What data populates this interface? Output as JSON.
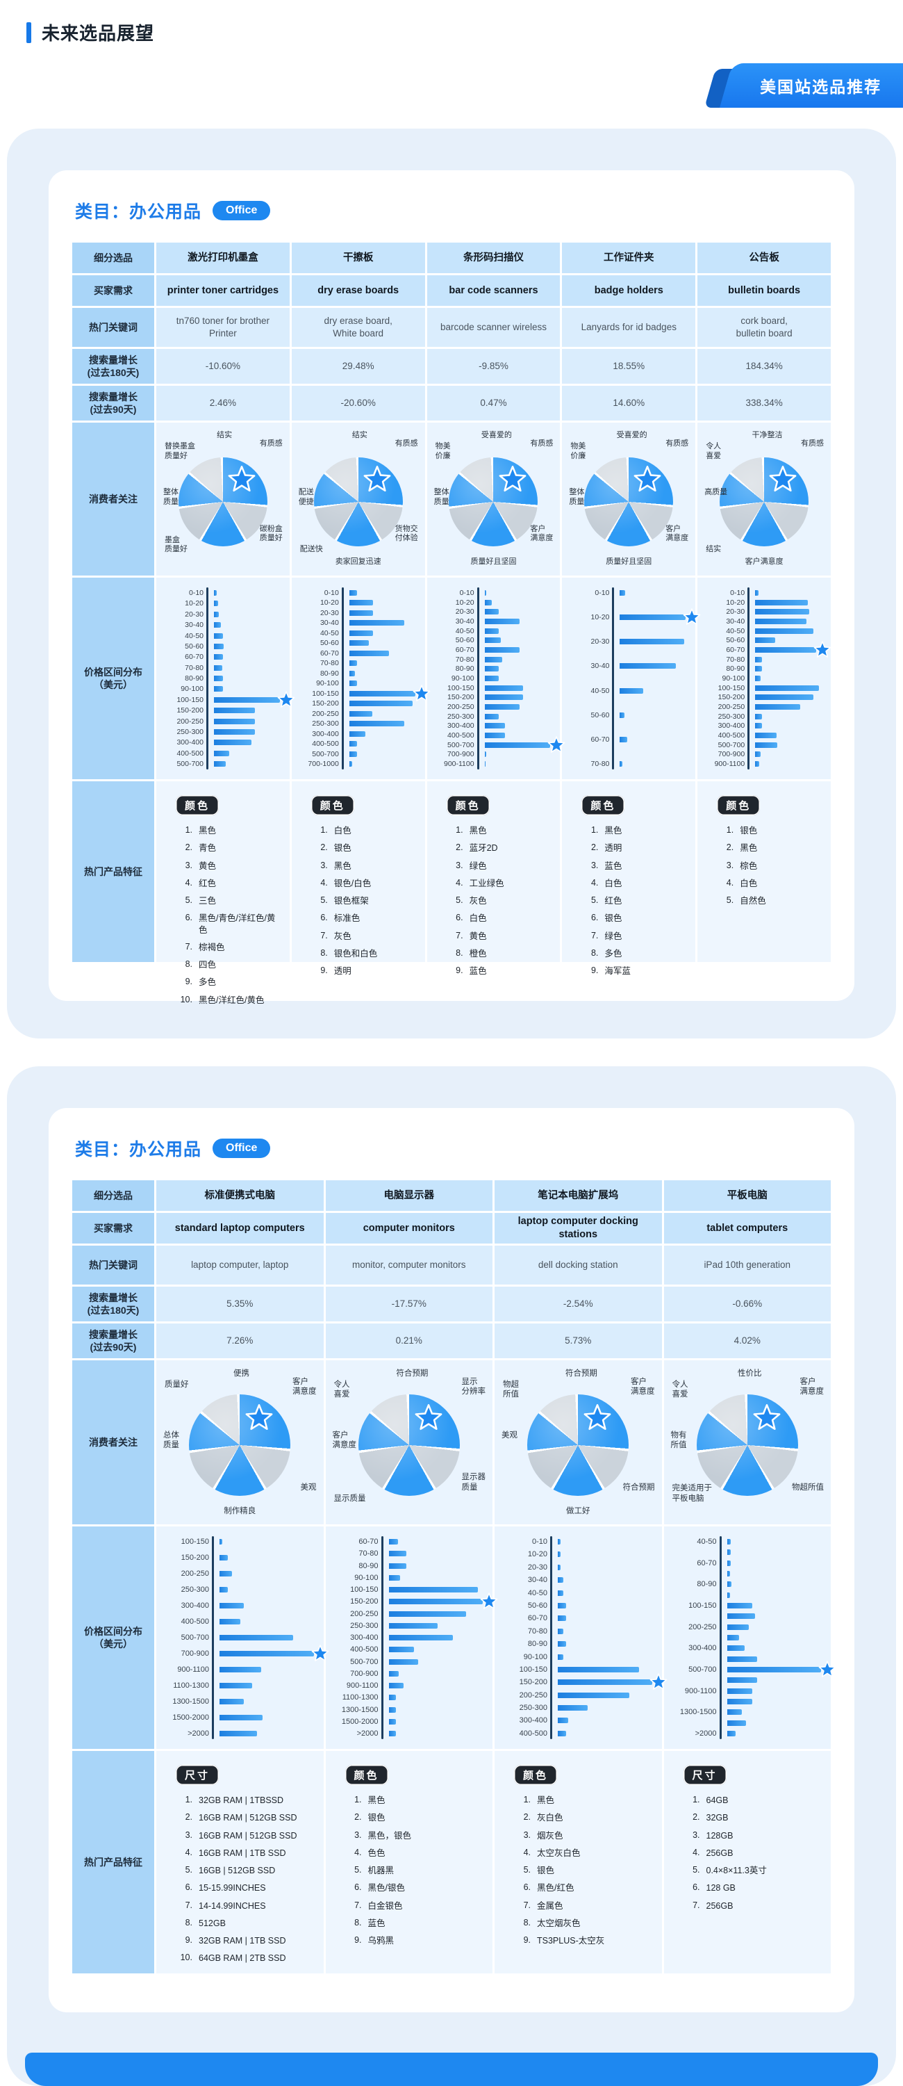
{
  "header": {
    "title": "未来选品展望",
    "ribbon": "美国站选品推荐"
  },
  "rows": {
    "seg": "细分选品",
    "demand": "买家需求",
    "keywords": "热门关键词",
    "g180": "搜索量增长\n(过去180天)",
    "g90": "搜索量增长\n(过去90天)",
    "focus": "消费者关注",
    "price": "价格区间分布\n（美元）",
    "features": "热门产品特征"
  },
  "colors": {
    "accent": "#1E88F0",
    "bar_blue": "#2E9BF5",
    "pie_gray": "#CBD3DB",
    "axis_navy": "#1C3D5E"
  },
  "section1": {
    "category": "类目：办公用品",
    "badge": "Office",
    "columns": [
      {
        "name": "激光打印机墨盒",
        "demand": "printer toner cartridges",
        "keywords": "tn760 toner for brother\nPrinter",
        "g180": "-10.60%",
        "g90": "2.46%",
        "pie": {
          "labels": [
            {
              "pos": "t",
              "text": "结实"
            },
            {
              "pos": "tr",
              "text": "有质感"
            },
            {
              "pos": "br",
              "text": "碳粉盒\n质量好"
            },
            {
              "pos": "bl",
              "text": "墨盒\n质量好"
            },
            {
              "pos": "l",
              "text": "整体\n质量"
            },
            {
              "pos": "tl",
              "text": "替换墨盒\n质量好"
            }
          ]
        },
        "bars": {
          "type": "bar",
          "categories": [
            "0-10",
            "10-20",
            "20-30",
            "30-40",
            "40-50",
            "50-60",
            "60-70",
            "70-80",
            "80-90",
            "90-100",
            "100-150",
            "150-200",
            "200-250",
            "250-300",
            "300-400",
            "400-500",
            "500-700"
          ],
          "values": [
            4,
            6,
            7,
            11,
            14,
            15,
            14,
            13,
            14,
            14,
            100,
            62,
            62,
            62,
            57,
            23,
            18
          ],
          "star_index": 10
        },
        "features": {
          "badge": "颜色",
          "items": [
            "黑色",
            "青色",
            "黄色",
            "红色",
            "三色",
            "黑色/青色/洋红色/黄色",
            "棕褐色",
            "四色",
            "多色",
            "黑色/洋红色/黄色"
          ]
        }
      },
      {
        "name": "干擦板",
        "demand": "dry erase boards",
        "keywords": "dry erase board,\nWhite board",
        "g180": "29.48%",
        "g90": "-20.60%",
        "pie": {
          "labels": [
            {
              "pos": "t",
              "text": "结实"
            },
            {
              "pos": "tr",
              "text": "有质感"
            },
            {
              "pos": "br",
              "text": "货物交\n付体验"
            },
            {
              "pos": "b",
              "text": "卖家回复迅速"
            },
            {
              "pos": "bl",
              "text": "配送快"
            },
            {
              "pos": "l",
              "text": "配送\n便捷"
            }
          ]
        },
        "bars": {
          "type": "bar",
          "categories": [
            "0-10",
            "10-20",
            "20-30",
            "30-40",
            "40-50",
            "50-60",
            "60-70",
            "70-80",
            "80-90",
            "90-100",
            "100-150",
            "150-200",
            "200-250",
            "250-300",
            "300-400",
            "400-500",
            "500-700",
            "700-1000"
          ],
          "values": [
            12,
            36,
            36,
            84,
            36,
            30,
            60,
            12,
            9,
            12,
            100,
            96,
            35,
            84,
            24,
            12,
            12,
            4
          ],
          "star_index": 10
        },
        "features": {
          "badge": "颜色",
          "items": [
            "白色",
            "银色",
            "黑色",
            "银色/白色",
            "银色框架",
            "标准色",
            "灰色",
            "银色和白色",
            "透明"
          ]
        }
      },
      {
        "name": "条形码扫描仪",
        "demand": "bar code scanners",
        "keywords": "barcode scanner wireless",
        "g180": "-9.85%",
        "g90": "0.47%",
        "pie": {
          "labels": [
            {
              "pos": "t",
              "text": "受喜爱的"
            },
            {
              "pos": "tr",
              "text": "有质感"
            },
            {
              "pos": "br",
              "text": "客户\n满意度"
            },
            {
              "pos": "b",
              "text": "质量好且坚固"
            },
            {
              "pos": "l",
              "text": "整体\n质量"
            },
            {
              "pos": "tl",
              "text": "物美\n价廉"
            }
          ]
        },
        "bars": {
          "type": "bar",
          "categories": [
            "0-10",
            "10-20",
            "20-30",
            "30-40",
            "40-50",
            "50-60",
            "60-70",
            "70-80",
            "80-90",
            "90-100",
            "100-150",
            "150-200",
            "200-250",
            "250-300",
            "300-400",
            "400-500",
            "500-700",
            "700-900",
            "900-1100"
          ],
          "values": [
            3,
            11,
            21,
            53,
            21,
            25,
            53,
            27,
            21,
            21,
            58,
            58,
            53,
            21,
            31,
            31,
            100,
            3,
            1
          ],
          "star_index": 16
        },
        "features": {
          "badge": "颜色",
          "items": [
            "黑色",
            "蓝牙2D",
            "绿色",
            "工业绿色",
            "灰色",
            "白色",
            "黄色",
            "橙色",
            "蓝色"
          ]
        }
      },
      {
        "name": "工作证件夹",
        "demand": "badge holders",
        "keywords": "Lanyards for id badges",
        "g180": "18.55%",
        "g90": "14.60%",
        "pie": {
          "labels": [
            {
              "pos": "t",
              "text": "受喜爱的"
            },
            {
              "pos": "tr",
              "text": "有质感"
            },
            {
              "pos": "br",
              "text": "客户\n满意度"
            },
            {
              "pos": "b",
              "text": "质量好且坚固"
            },
            {
              "pos": "l",
              "text": "整体\n质量"
            },
            {
              "pos": "tl",
              "text": "物美\n价廉"
            }
          ]
        },
        "bars": {
          "type": "bar",
          "categories": [
            "0-10",
            "10-20",
            "20-30",
            "30-40",
            "40-50",
            "50-60",
            "60-70",
            "70-80"
          ],
          "values": [
            8,
            100,
            98,
            85,
            35,
            7,
            11,
            4
          ],
          "star_index": 1
        },
        "features": {
          "badge": "颜色",
          "items": [
            "黑色",
            "透明",
            "蓝色",
            "白色",
            "红色",
            "银色",
            "绿色",
            "多色",
            "海军蓝"
          ]
        }
      },
      {
        "name": "公告板",
        "demand": "bulletin boards",
        "keywords": "cork board,\nbulletin board",
        "g180": "184.34%",
        "g90": "338.34%",
        "pie": {
          "labels": [
            {
              "pos": "t",
              "text": "干净整洁"
            },
            {
              "pos": "tr",
              "text": "有质感"
            },
            {
              "pos": "b",
              "text": "客户满意度"
            },
            {
              "pos": "bl",
              "text": "结实"
            },
            {
              "pos": "l",
              "text": "高质量"
            },
            {
              "pos": "tl",
              "text": "令人\n喜爱"
            }
          ]
        },
        "bars": {
          "type": "bar",
          "categories": [
            "0-10",
            "10-20",
            "20-30",
            "30-40",
            "40-50",
            "50-60",
            "60-70",
            "70-80",
            "80-90",
            "90-100",
            "100-150",
            "150-200",
            "200-250",
            "250-300",
            "300-400",
            "400-500",
            "500-700",
            "700-900",
            "900-1100"
          ],
          "values": [
            5,
            80,
            82,
            78,
            88,
            30,
            93,
            10,
            10,
            8,
            97,
            88,
            68,
            10,
            10,
            33,
            34,
            8,
            6
          ],
          "star_index": 6
        },
        "features": {
          "badge": "颜色",
          "items": [
            "银色",
            "黑色",
            "棕色",
            "白色",
            "自然色"
          ]
        }
      }
    ]
  },
  "section2": {
    "category": "类目：办公用品",
    "badge": "Office",
    "columns": [
      {
        "name": "标准便携式电脑",
        "demand": "standard laptop computers",
        "keywords": "laptop computer, laptop",
        "g180": "5.35%",
        "g90": "7.26%",
        "pie": {
          "labels": [
            {
              "pos": "t",
              "text": "便携"
            },
            {
              "pos": "tr",
              "text": "客户\n满意度"
            },
            {
              "pos": "br",
              "text": "美观"
            },
            {
              "pos": "b",
              "text": "制作精良"
            },
            {
              "pos": "l",
              "text": "总体\n质量"
            },
            {
              "pos": "tl",
              "text": "质量好"
            }
          ]
        },
        "bars": {
          "type": "bar",
          "categories": [
            "100-150",
            "150-200",
            "200-250",
            "250-300",
            "300-400",
            "400-500",
            "500-700",
            "700-900",
            "900-1100",
            "1100-1300",
            "1300-1500",
            "1500-2000",
            ">2000"
          ],
          "values": [
            3,
            9,
            13,
            9,
            26,
            22,
            78,
            100,
            44,
            35,
            26,
            46,
            40
          ],
          "star_index": 7
        },
        "features": {
          "badge": "尺寸",
          "items": [
            "32GB RAM | 1TBSSD",
            "16GB RAM | 512GB SSD",
            "16GB RAM | 512GB SSD",
            "16GB RAM | 1TB SSD",
            "16GB | 512GB SSD",
            "15-15.99INCHES",
            "14-14.99INCHES",
            "512GB",
            "32GB RAM | 1TB SSD",
            "64GB RAM | 2TB SSD"
          ]
        }
      },
      {
        "name": "电脑显示器",
        "demand": "computer monitors",
        "keywords": "monitor, computer monitors",
        "g180": "-17.57%",
        "g90": "0.21%",
        "pie": {
          "labels": [
            {
              "pos": "t",
              "text": "符合预期"
            },
            {
              "pos": "tr",
              "text": "显示\n分辨率"
            },
            {
              "pos": "br",
              "text": "显示器\n质量"
            },
            {
              "pos": "bl",
              "text": "显示质量"
            },
            {
              "pos": "l",
              "text": "客户\n满意度"
            },
            {
              "pos": "tl",
              "text": "令人\n喜爱"
            }
          ]
        },
        "bars": {
          "type": "bar",
          "categories": [
            "60-70",
            "70-80",
            "80-90",
            "90-100",
            "100-150",
            "150-200",
            "200-250",
            "250-300",
            "300-400",
            "400-500",
            "500-700",
            "700-900",
            "900-1100",
            "1100-1300",
            "1300-1500",
            "1500-2000",
            ">2000"
          ],
          "values": [
            10,
            19,
            19,
            12,
            95,
            100,
            82,
            52,
            68,
            27,
            31,
            11,
            16,
            8,
            8,
            8,
            8
          ],
          "star_index": 5
        },
        "features": {
          "badge": "颜色",
          "items": [
            "黑色",
            "银色",
            "黑色，银色",
            "色色",
            "机器黑",
            "黑色/银色",
            "白金银色",
            "蓝色",
            "乌鸦黑"
          ]
        }
      },
      {
        "name": "笔记本电脑扩展坞",
        "demand": "laptop computer docking\nstations",
        "keywords": "dell docking station",
        "g180": "-2.54%",
        "g90": "5.73%",
        "pie": {
          "labels": [
            {
              "pos": "t",
              "text": "符合预期"
            },
            {
              "pos": "tr",
              "text": "客户\n满意度"
            },
            {
              "pos": "br",
              "text": "符合预期"
            },
            {
              "pos": "b",
              "text": "做工好"
            },
            {
              "pos": "l",
              "text": "美观"
            },
            {
              "pos": "tl",
              "text": "物超\n所值"
            }
          ]
        },
        "bars": {
          "type": "bar",
          "categories": [
            "0-10",
            "10-20",
            "20-30",
            "30-40",
            "40-50",
            "50-60",
            "60-70",
            "70-80",
            "80-90",
            "90-100",
            "100-150",
            "150-200",
            "200-250",
            "250-300",
            "300-400",
            "400-500"
          ],
          "values": [
            3,
            3,
            3,
            6,
            6,
            9,
            9,
            6,
            9,
            6,
            86,
            100,
            76,
            32,
            11,
            9
          ],
          "star_index": 11
        },
        "features": {
          "badge": "颜色",
          "items": [
            "黑色",
            "灰白色",
            "烟灰色",
            "太空灰白色",
            "银色",
            "黑色/红色",
            "金属色",
            "太空烟灰色",
            "TS3PLUS-太空灰"
          ]
        }
      },
      {
        "name": "平板电脑",
        "demand": "tablet computers",
        "keywords": "iPad 10th generation",
        "g180": "-0.66%",
        "g90": "4.02%",
        "pie": {
          "labels": [
            {
              "pos": "t",
              "text": "性价比"
            },
            {
              "pos": "tr",
              "text": "客户\n满意度"
            },
            {
              "pos": "br",
              "text": "物超所值"
            },
            {
              "pos": "bl",
              "text": "完美适用于\n平板电脑"
            },
            {
              "pos": "l",
              "text": "物有\n所值"
            },
            {
              "pos": "tl",
              "text": "令人\n喜爱"
            }
          ]
        },
        "bars": {
          "type": "bar",
          "categories": [
            "40-50",
            "",
            "60-70",
            "",
            "80-90",
            "",
            "100-150",
            "",
            "200-250",
            "",
            "300-400",
            "",
            "500-700",
            "",
            "900-1100",
            "",
            "1300-1500",
            "",
            ">2000"
          ],
          "values": [
            4,
            4,
            4,
            3,
            5,
            3,
            27,
            30,
            23,
            13,
            19,
            32,
            100,
            32,
            27,
            27,
            16,
            20,
            9
          ],
          "star_index": 12
        },
        "features": {
          "badge": "尺寸",
          "items": [
            "64GB",
            "32GB",
            "128GB",
            "256GB",
            "0.4×8×11.3英寸",
            "128 GB",
            "256GB"
          ]
        }
      }
    ]
  }
}
